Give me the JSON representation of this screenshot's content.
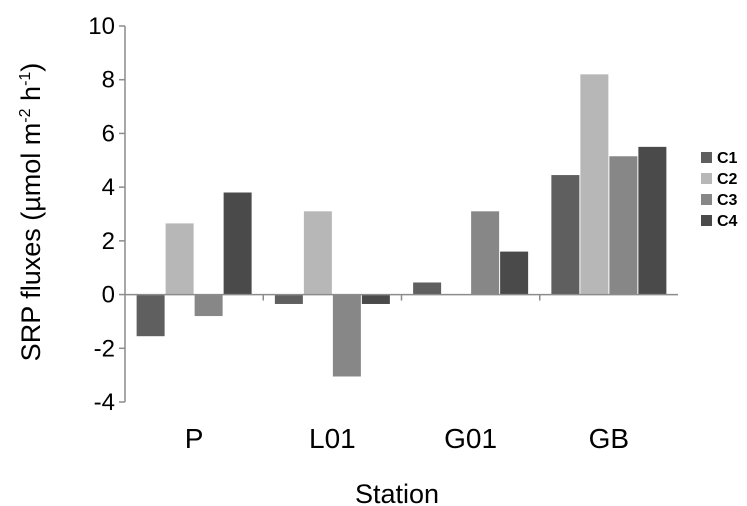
{
  "chart_data": {
    "type": "bar",
    "title": "",
    "xlabel": "Station",
    "ylabel": "SRP fluxes (µmol m",
    "ylabel_sup1": "-2",
    "ylabel_mid": " h",
    "ylabel_sup2": "-1",
    "ylabel_end": ")",
    "categories": [
      "P",
      "L01",
      "G01",
      "GB"
    ],
    "ylim": [
      -4,
      10
    ],
    "yticks": [
      -4,
      -2,
      0,
      2,
      4,
      6,
      8,
      10
    ],
    "legend_position": "right",
    "series": [
      {
        "name": "C1",
        "color": "#5f5f5f",
        "values": [
          -1.55,
          -0.35,
          0.45,
          4.45
        ]
      },
      {
        "name": "C2",
        "color": "#b7b7b7",
        "values": [
          2.65,
          3.1,
          0,
          8.2
        ]
      },
      {
        "name": "C3",
        "color": "#878787",
        "values": [
          -0.8,
          -3.05,
          3.1,
          5.15
        ]
      },
      {
        "name": "C4",
        "color": "#4a4a4a",
        "values": [
          3.8,
          -0.35,
          1.6,
          5.5
        ]
      }
    ]
  }
}
